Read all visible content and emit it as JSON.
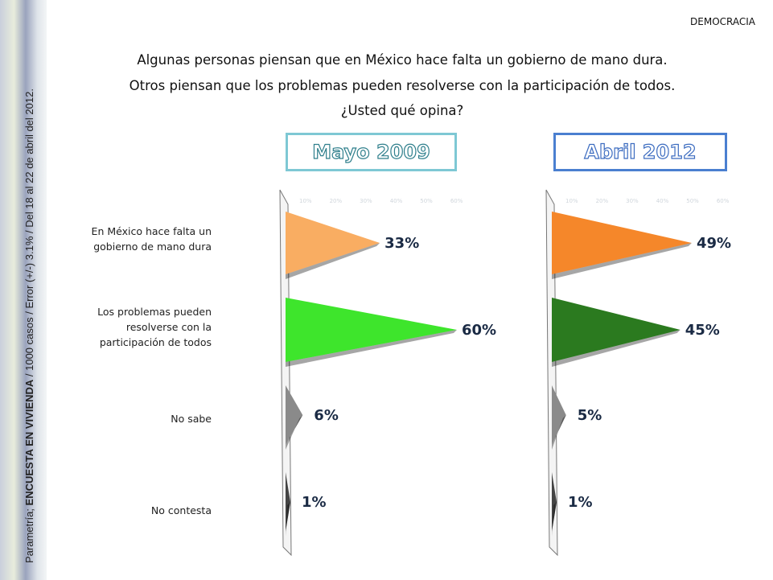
{
  "sidebar_note": {
    "prefix": "Parametría; ",
    "bold": "ENCUESTA EN VIVIENDA",
    "rest": " / 1000 casos / Error (+/-) 3.1% / Del 18 al 22 de abril del 2012."
  },
  "section": "DEMOCRACIA",
  "question": [
    "Algunas personas piensan que en México hace falta un gobierno de mano dura.",
    "Otros piensan que los problemas pueden resolverse con la participación de todos.",
    "¿Usted qué opina?"
  ],
  "chart_data": [
    {
      "type": "bar",
      "orientation": "horizontal",
      "title": "Mayo  2009",
      "categories": [
        "En México hace falta un gobierno de mano dura",
        "Los problemas pueden resolverse con la participación de todos",
        "No sabe",
        "No contesta"
      ],
      "values": [
        33,
        60,
        6,
        1
      ],
      "value_labels": [
        "33%",
        "60%",
        "6%",
        "1%"
      ],
      "colors": [
        "#f9ad62",
        "#3ee52c",
        "#8a8a8a",
        "#444444"
      ],
      "axis_ticks": [
        "10%",
        "20%",
        "30%",
        "40%",
        "50%",
        "60%"
      ],
      "xlim": [
        0,
        60
      ]
    },
    {
      "type": "bar",
      "orientation": "horizontal",
      "title": "Abril 2012",
      "categories": [
        "En México hace falta un gobierno de mano dura",
        "Los problemas pueden resolverse con la participación de todos",
        "No sabe",
        "No contesta"
      ],
      "values": [
        49,
        45,
        5,
        1
      ],
      "value_labels": [
        "49%",
        "45%",
        "5%",
        "1%"
      ],
      "colors": [
        "#f5872a",
        "#2b7a1f",
        "#8a8a8a",
        "#444444"
      ],
      "axis_ticks": [
        "10%",
        "20%",
        "30%",
        "40%",
        "50%",
        "60%"
      ],
      "xlim": [
        0,
        60
      ]
    }
  ],
  "row_labels": [
    [
      "En México hace falta un",
      "gobierno de mano dura"
    ],
    [
      "Los problemas pueden",
      "resolverse con la",
      "participación de todos"
    ],
    [
      "No sabe"
    ],
    [
      "No contesta"
    ]
  ],
  "header_colors": {
    "left": "#7ec8d4",
    "right": "#4a7fd0"
  }
}
